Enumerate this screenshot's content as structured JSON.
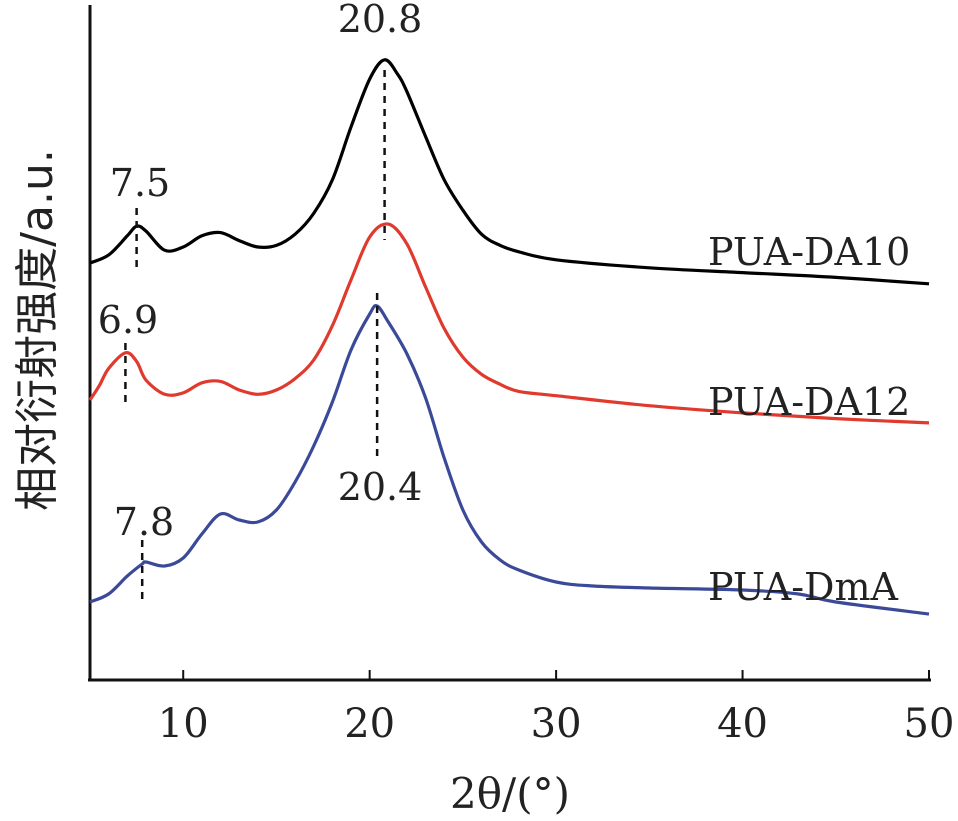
{
  "chart_data": {
    "type": "line",
    "xlabel": "2θ/(°)",
    "ylabel": "相对衍射强度/a.u.",
    "xlim": [
      5,
      50
    ],
    "xticks": [
      10,
      20,
      30,
      40,
      50
    ],
    "yticks_visible": false,
    "grid": false,
    "series": [
      {
        "name": "PUA-DA10",
        "color": "#000000",
        "points": [
          [
            5,
            -0.05
          ],
          [
            6,
            0
          ],
          [
            7,
            0.12
          ],
          [
            7.5,
            0.18
          ],
          [
            8,
            0.15
          ],
          [
            9,
            0.03
          ],
          [
            10,
            0.05
          ],
          [
            11,
            0.12
          ],
          [
            12,
            0.14
          ],
          [
            13,
            0.09
          ],
          [
            14,
            0.05
          ],
          [
            15,
            0.06
          ],
          [
            16,
            0.13
          ],
          [
            17,
            0.26
          ],
          [
            18,
            0.47
          ],
          [
            19,
            0.8
          ],
          [
            20,
            1.1
          ],
          [
            20.8,
            1.22
          ],
          [
            21.5,
            1.13
          ],
          [
            22,
            1.02
          ],
          [
            23,
            0.74
          ],
          [
            24,
            0.47
          ],
          [
            25,
            0.28
          ],
          [
            26,
            0.13
          ],
          [
            27,
            0.06
          ],
          [
            28,
            0.02
          ],
          [
            30,
            -0.03
          ],
          [
            35,
            -0.08
          ],
          [
            40,
            -0.11
          ],
          [
            45,
            -0.14
          ],
          [
            50,
            -0.18
          ]
        ]
      },
      {
        "name": "PUA-DA12",
        "color": "#e03a2f",
        "points": [
          [
            5,
            0
          ],
          [
            5.5,
            0.1
          ],
          [
            6,
            0.22
          ],
          [
            6.9,
            0.33
          ],
          [
            7.5,
            0.27
          ],
          [
            8,
            0.14
          ],
          [
            9,
            0.04
          ],
          [
            10,
            0.05
          ],
          [
            11,
            0.12
          ],
          [
            12,
            0.13
          ],
          [
            13,
            0.07
          ],
          [
            14,
            0.04
          ],
          [
            15,
            0.07
          ],
          [
            16,
            0.15
          ],
          [
            17,
            0.28
          ],
          [
            18,
            0.52
          ],
          [
            19,
            0.84
          ],
          [
            20,
            1.14
          ],
          [
            21,
            1.23
          ],
          [
            22,
            1.09
          ],
          [
            23,
            0.79
          ],
          [
            24,
            0.5
          ],
          [
            25,
            0.3
          ],
          [
            26,
            0.18
          ],
          [
            27,
            0.11
          ],
          [
            28,
            0.06
          ],
          [
            30,
            0.03
          ],
          [
            35,
            -0.04
          ],
          [
            40,
            -0.09
          ],
          [
            45,
            -0.13
          ],
          [
            50,
            -0.16
          ]
        ]
      },
      {
        "name": "PUA-DmA",
        "color": "#3b4a98",
        "points": [
          [
            5,
            0
          ],
          [
            6,
            0.04
          ],
          [
            7,
            0.13
          ],
          [
            7.8,
            0.19
          ],
          [
            8,
            0.2
          ],
          [
            9,
            0.18
          ],
          [
            10,
            0.22
          ],
          [
            11,
            0.34
          ],
          [
            12,
            0.44
          ],
          [
            13,
            0.41
          ],
          [
            14,
            0.4
          ],
          [
            15,
            0.46
          ],
          [
            16,
            0.6
          ],
          [
            17,
            0.78
          ],
          [
            18,
            1.0
          ],
          [
            19,
            1.26
          ],
          [
            20,
            1.44
          ],
          [
            20.4,
            1.48
          ],
          [
            21,
            1.4
          ],
          [
            22,
            1.24
          ],
          [
            23,
            1.02
          ],
          [
            24,
            0.72
          ],
          [
            25,
            0.46
          ],
          [
            26,
            0.3
          ],
          [
            27,
            0.21
          ],
          [
            28,
            0.16
          ],
          [
            30,
            0.1
          ],
          [
            32,
            0.08
          ],
          [
            35,
            0.07
          ],
          [
            40,
            0.06
          ],
          [
            43,
            0.04
          ],
          [
            45,
            0.0
          ],
          [
            50,
            -0.06
          ]
        ]
      }
    ],
    "annotations": [
      {
        "text": "20.8",
        "series": "PUA-DA10",
        "x": 20.8
      },
      {
        "text": "7.5",
        "series": "PUA-DA10",
        "x": 7.5
      },
      {
        "text": "6.9",
        "series": "PUA-DA12",
        "x": 6.9
      },
      {
        "text": "20.4",
        "series": "PUA-DmA",
        "x": 20.4
      },
      {
        "text": "7.8",
        "series": "PUA-DmA",
        "x": 7.8
      }
    ]
  }
}
